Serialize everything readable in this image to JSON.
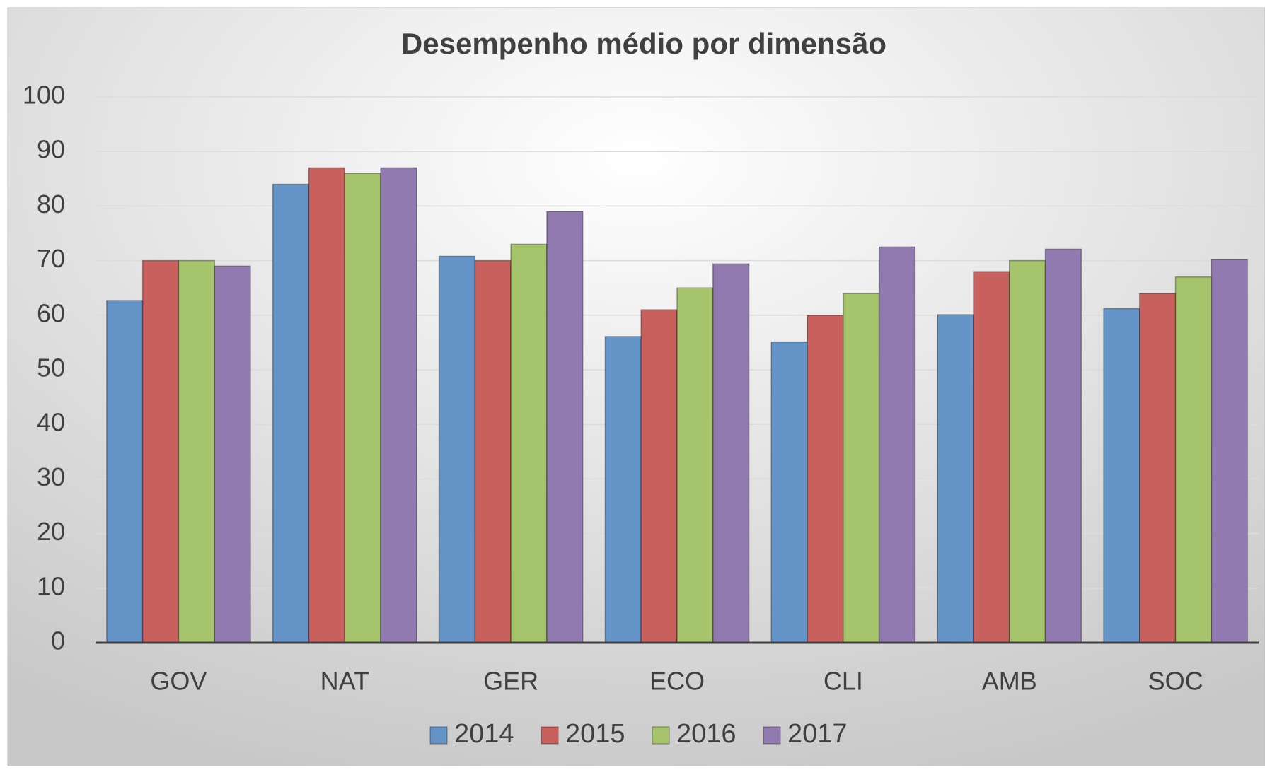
{
  "chart_data": {
    "type": "bar",
    "title": "Desempenho médio por dimensão",
    "categories": [
      "GOV",
      "NAT",
      "GER",
      "ECO",
      "CLI",
      "AMB",
      "SOC"
    ],
    "series": [
      {
        "name": "2014",
        "color": "#6494c8",
        "values": [
          62.7,
          84,
          70.8,
          56.1,
          55.1,
          60.1,
          61.2
        ]
      },
      {
        "name": "2015",
        "color": "#c8605e",
        "values": [
          70,
          87,
          70,
          61,
          60,
          68,
          64
        ]
      },
      {
        "name": "2016",
        "color": "#a6c46c",
        "values": [
          70,
          86,
          73,
          65,
          64,
          70,
          67
        ]
      },
      {
        "name": "2017",
        "color": "#917ab0",
        "values": [
          69,
          87,
          79,
          69.4,
          72.5,
          72.1,
          70.2
        ]
      }
    ],
    "ylim": [
      0,
      100
    ],
    "yticks": [
      0,
      10,
      20,
      30,
      40,
      50,
      60,
      70,
      80,
      90,
      100
    ],
    "grid": true,
    "legend": "bottom"
  }
}
